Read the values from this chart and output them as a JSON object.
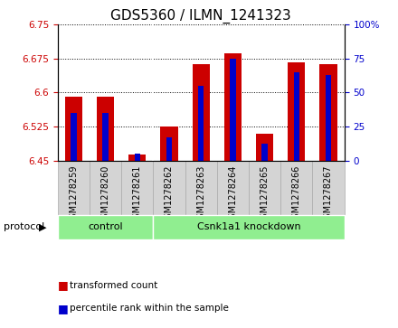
{
  "title": "GDS5360 / ILMN_1241323",
  "samples": [
    "GSM1278259",
    "GSM1278260",
    "GSM1278261",
    "GSM1278262",
    "GSM1278263",
    "GSM1278264",
    "GSM1278265",
    "GSM1278266",
    "GSM1278267"
  ],
  "transformed_count": [
    6.59,
    6.591,
    6.463,
    6.524,
    6.663,
    6.686,
    6.508,
    6.667,
    6.663
  ],
  "percentile_rank": [
    35,
    35,
    5,
    17,
    55,
    75,
    12,
    65,
    63
  ],
  "ylim_left": [
    6.45,
    6.75
  ],
  "ylim_right": [
    0,
    100
  ],
  "yticks_left": [
    6.45,
    6.525,
    6.6,
    6.675,
    6.75
  ],
  "yticks_right": [
    0,
    25,
    50,
    75,
    100
  ],
  "bar_color_red": "#cc0000",
  "bar_color_blue": "#0000cc",
  "bar_width": 0.55,
  "blue_bar_width": 0.18,
  "base_value": 6.45,
  "n_samples": 9,
  "n_control": 3,
  "group_control_label": "control",
  "group_kd_label": "Csnk1a1 knockdown",
  "group_color": "#90ee90",
  "protocol_label": "protocol",
  "legend_items": [
    {
      "label": "transformed count",
      "color": "#cc0000"
    },
    {
      "label": "percentile rank within the sample",
      "color": "#0000cc"
    }
  ],
  "title_fontsize": 11,
  "tick_fontsize": 7.5,
  "sample_fontsize": 7,
  "axis_color_left": "#cc0000",
  "axis_color_right": "#0000cc",
  "sample_box_color": "#d4d4d4",
  "sample_box_edgecolor": "#aaaaaa"
}
